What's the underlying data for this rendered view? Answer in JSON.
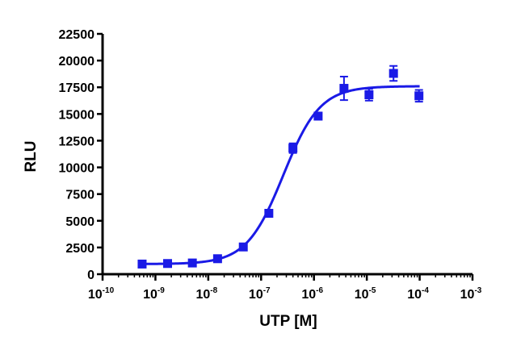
{
  "chart_data": {
    "type": "scatter",
    "title": "",
    "xlabel": "UTP [M]",
    "ylabel": "RLU",
    "x_scale": "log",
    "xlim": [
      1e-10,
      0.001
    ],
    "ylim": [
      0,
      22500
    ],
    "x_tick_labels": [
      {
        "base": "10",
        "exp": "-10"
      },
      {
        "base": "10",
        "exp": "-9"
      },
      {
        "base": "10",
        "exp": "-8"
      },
      {
        "base": "10",
        "exp": "-7"
      },
      {
        "base": "10",
        "exp": "-6"
      },
      {
        "base": "10",
        "exp": "-5"
      },
      {
        "base": "10",
        "exp": "-4"
      },
      {
        "base": "10",
        "exp": "-3"
      }
    ],
    "y_tick_labels": [
      "0",
      "2500",
      "5000",
      "7500",
      "10000",
      "12500",
      "15000",
      "17500",
      "20000",
      "22500"
    ],
    "grid": false,
    "colors": {
      "series": "#1a1ae6",
      "axis": "#000000"
    },
    "series": [
      {
        "marker": "square",
        "points": [
          {
            "x": 5.6e-10,
            "y": 950,
            "err": 100
          },
          {
            "x": 1.7e-09,
            "y": 1000,
            "err": 100
          },
          {
            "x": 5e-09,
            "y": 1050,
            "err": 100
          },
          {
            "x": 1.5e-08,
            "y": 1450,
            "err": 150
          },
          {
            "x": 4.6e-08,
            "y": 2550,
            "err": 150
          },
          {
            "x": 1.4e-07,
            "y": 5700,
            "err": 200
          },
          {
            "x": 4e-07,
            "y": 11800,
            "err": 450
          },
          {
            "x": 1.2e-06,
            "y": 14800,
            "err": 200
          },
          {
            "x": 3.7e-06,
            "y": 17400,
            "err": 1100
          },
          {
            "x": 1.1e-05,
            "y": 16800,
            "err": 550
          },
          {
            "x": 3.2e-05,
            "y": 18800,
            "err": 700
          },
          {
            "x": 9.7e-05,
            "y": 16700,
            "err": 550
          }
        ]
      }
    ],
    "fit": {
      "model": "four-parameter logistic",
      "bottom": 950,
      "top": 17600,
      "log_ec50": -6.58,
      "hill": 1.25,
      "x_range": [
        5.6e-10,
        0.0001
      ]
    }
  }
}
